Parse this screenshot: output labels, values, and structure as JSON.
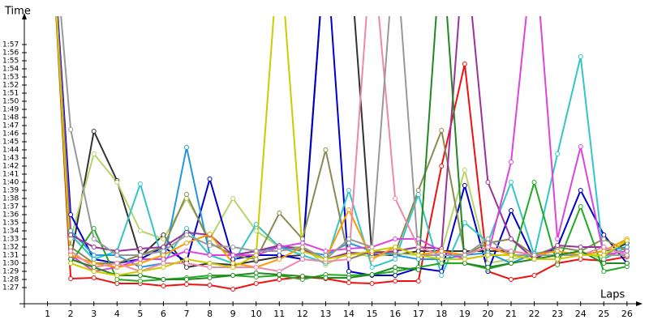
{
  "chart_data": {
    "type": "line",
    "y_label": "Time",
    "x_label": "Laps",
    "x": [
      1,
      2,
      3,
      4,
      5,
      6,
      7,
      8,
      9,
      10,
      11,
      12,
      13,
      14,
      15,
      16,
      17,
      18,
      19,
      20,
      21,
      22,
      23,
      24,
      25,
      26
    ],
    "xlim": [
      0,
      26.6
    ],
    "xticks": [
      1,
      2,
      3,
      4,
      5,
      6,
      7,
      8,
      9,
      10,
      11,
      12,
      13,
      14,
      15,
      16,
      17,
      18,
      19,
      20,
      21,
      22,
      23,
      24,
      25,
      26
    ],
    "ylim": [
      85,
      120
    ],
    "yticks": [
      {
        "value": 87,
        "label": "1:27"
      },
      {
        "value": 88,
        "label": "1:28"
      },
      {
        "value": 89,
        "label": "1:29"
      },
      {
        "value": 90,
        "label": "1:30"
      },
      {
        "value": 91,
        "label": "1:31"
      },
      {
        "value": 92,
        "label": "1:32"
      },
      {
        "value": 93,
        "label": "1:33"
      },
      {
        "value": 94,
        "label": "1:34"
      },
      {
        "value": 95,
        "label": "1:35"
      },
      {
        "value": 96,
        "label": "1:36"
      },
      {
        "value": 97,
        "label": "1:37"
      },
      {
        "value": 98,
        "label": "1:38"
      },
      {
        "value": 99,
        "label": "1:39"
      },
      {
        "value": 100,
        "label": "1:40"
      },
      {
        "value": 101,
        "label": "1:41"
      },
      {
        "value": 102,
        "label": "1:42"
      },
      {
        "value": 103,
        "label": "1:43"
      },
      {
        "value": 104,
        "label": "1:44"
      },
      {
        "value": 105,
        "label": "1:45"
      },
      {
        "value": 106,
        "label": "1:46"
      },
      {
        "value": 107,
        "label": "1:47"
      },
      {
        "value": 108,
        "label": "1:48"
      },
      {
        "value": 109,
        "label": "1:49"
      },
      {
        "value": 110,
        "label": "1:50"
      },
      {
        "value": 111,
        "label": "1:51"
      },
      {
        "value": 112,
        "label": "1:52"
      },
      {
        "value": 113,
        "label": "1:53"
      },
      {
        "value": 114,
        "label": "1:54"
      },
      {
        "value": 115,
        "label": "1:55"
      },
      {
        "value": 116,
        "label": "1:56"
      },
      {
        "value": 117,
        "label": "1:57"
      }
    ],
    "grid": false,
    "series": [
      {
        "color": "#ee1111",
        "values": [
          140,
          88.1,
          88.2,
          87.5,
          87.5,
          87.2,
          87.4,
          87.3,
          86.8,
          87.5,
          88,
          88.3,
          88.1,
          87.6,
          87.5,
          87.8,
          87.8,
          102,
          114.6,
          89,
          88,
          88.5,
          90,
          90.5,
          90.3,
          90.8
        ]
      },
      {
        "color": "#333333",
        "values": [
          140,
          90.5,
          106.3,
          100.2,
          90.8,
          93.5,
          89.5,
          90,
          89.8,
          90.3,
          90.8,
          91,
          130,
          130,
          91,
          91,
          91.5,
          91.5,
          91.5,
          91.5,
          91.5,
          91,
          91,
          91,
          91,
          92.5
        ]
      },
      {
        "color": "#b5d56a",
        "values": [
          140,
          93,
          103.5,
          100,
          94,
          93,
          98,
          93,
          98,
          94,
          92,
          92,
          89.8,
          91.3,
          90.8,
          91.2,
          91,
          91.5,
          101.5,
          90,
          90.5,
          91,
          91,
          91.5,
          90.5,
          93
        ]
      },
      {
        "color": "#0000cc",
        "values": [
          140,
          96,
          90.5,
          90,
          90.5,
          92,
          90.2,
          100.4,
          90.5,
          91,
          91,
          90.5,
          130,
          89,
          88.5,
          88.5,
          89.4,
          89,
          99.6,
          89,
          96.5,
          90.5,
          92,
          99,
          93.5,
          90
        ]
      },
      {
        "color": "#33c6c6",
        "values": [
          140,
          93.5,
          90.5,
          91.5,
          99.8,
          90,
          94.3,
          91,
          90,
          94.8,
          92,
          91,
          90,
          99,
          89.5,
          90.5,
          98.5,
          88.5,
          95,
          92.6,
          100,
          91,
          103.5,
          115.5,
          90.5,
          92
        ]
      },
      {
        "color": "#2299dd",
        "values": [
          140,
          94,
          91,
          91,
          89.5,
          90,
          104.3,
          91,
          91,
          91.5,
          92,
          91.5,
          91,
          92.5,
          91.5,
          91,
          90.5,
          90.5,
          91,
          91.3,
          90,
          91.2,
          91.5,
          91,
          91.5,
          92
        ]
      },
      {
        "color": "#8a8a50",
        "values": [
          140,
          92,
          90,
          90,
          91,
          92,
          98.5,
          92.5,
          91,
          90.5,
          96.2,
          93,
          104,
          90.5,
          91.5,
          91.3,
          99,
          106.4,
          91,
          92.5,
          93,
          91,
          92,
          91.5,
          93,
          91.5
        ]
      },
      {
        "color": "#22aa22",
        "values": [
          140,
          90,
          94.3,
          88,
          87.8,
          88,
          88.2,
          88.5,
          88.5,
          88.3,
          88.5,
          88,
          88.6,
          88.5,
          88.6,
          89,
          89.5,
          90,
          90,
          89.3,
          90,
          100,
          89.8,
          97,
          89,
          89.6
        ]
      },
      {
        "color": "#993399",
        "values": [
          140,
          93.5,
          92,
          91.5,
          91.8,
          92,
          93.8,
          93.5,
          91,
          91.5,
          92.2,
          91.7,
          90.5,
          91.3,
          91.2,
          91.5,
          92,
          91.8,
          130,
          100,
          93,
          90.5,
          92.2,
          92,
          92,
          91
        ]
      },
      {
        "color": "#dd44dd",
        "values": [
          140,
          91,
          89,
          89.5,
          90.5,
          90.5,
          91.5,
          91,
          91,
          91,
          92,
          92.5,
          91.5,
          91.8,
          92,
          93,
          93,
          91.5,
          90.5,
          91,
          102.5,
          130,
          93,
          104.4,
          91,
          91.5
        ]
      },
      {
        "color": "#ff9900",
        "values": [
          140,
          91,
          90,
          89.5,
          90,
          91,
          92.5,
          93.6,
          90,
          89.5,
          90.5,
          92,
          90.5,
          96.6,
          90.5,
          92,
          91,
          91.5,
          91,
          92,
          91,
          91,
          91.5,
          91,
          91.5,
          93
        ]
      },
      {
        "color": "#ee88aa",
        "values": [
          140,
          91.5,
          89.5,
          90,
          89,
          90,
          90,
          89.5,
          89.5,
          89.5,
          89,
          90.5,
          90.2,
          90.5,
          130,
          98,
          92,
          91,
          91,
          92,
          91.5,
          91,
          91,
          91,
          92,
          91
        ]
      },
      {
        "color": "#999999",
        "values": [
          140,
          106.5,
          93,
          91,
          91,
          91.5,
          93.5,
          92.2,
          92,
          91.5,
          91.5,
          92,
          90.5,
          93,
          92,
          130,
          91,
          91,
          91,
          93,
          91,
          91,
          91,
          91,
          91,
          91
        ]
      },
      {
        "color": "#228822",
        "values": [
          140,
          90.5,
          89.5,
          88.5,
          88.5,
          88,
          88,
          88.2,
          88.5,
          88.8,
          88.6,
          88.4,
          88.2,
          88.2,
          88.6,
          89.5,
          89.2,
          130,
          90,
          89.5,
          90,
          90.5,
          91,
          91.5,
          90,
          90
        ]
      },
      {
        "color": "#cccc00",
        "values": [
          140,
          90,
          89,
          88.5,
          89,
          89.5,
          90.5,
          90,
          89.5,
          91,
          130,
          91.5,
          90.5,
          91,
          91.5,
          92,
          91,
          90.5,
          90.5,
          91,
          91,
          90.5,
          90.5,
          91,
          91,
          92.8
        ]
      }
    ]
  }
}
